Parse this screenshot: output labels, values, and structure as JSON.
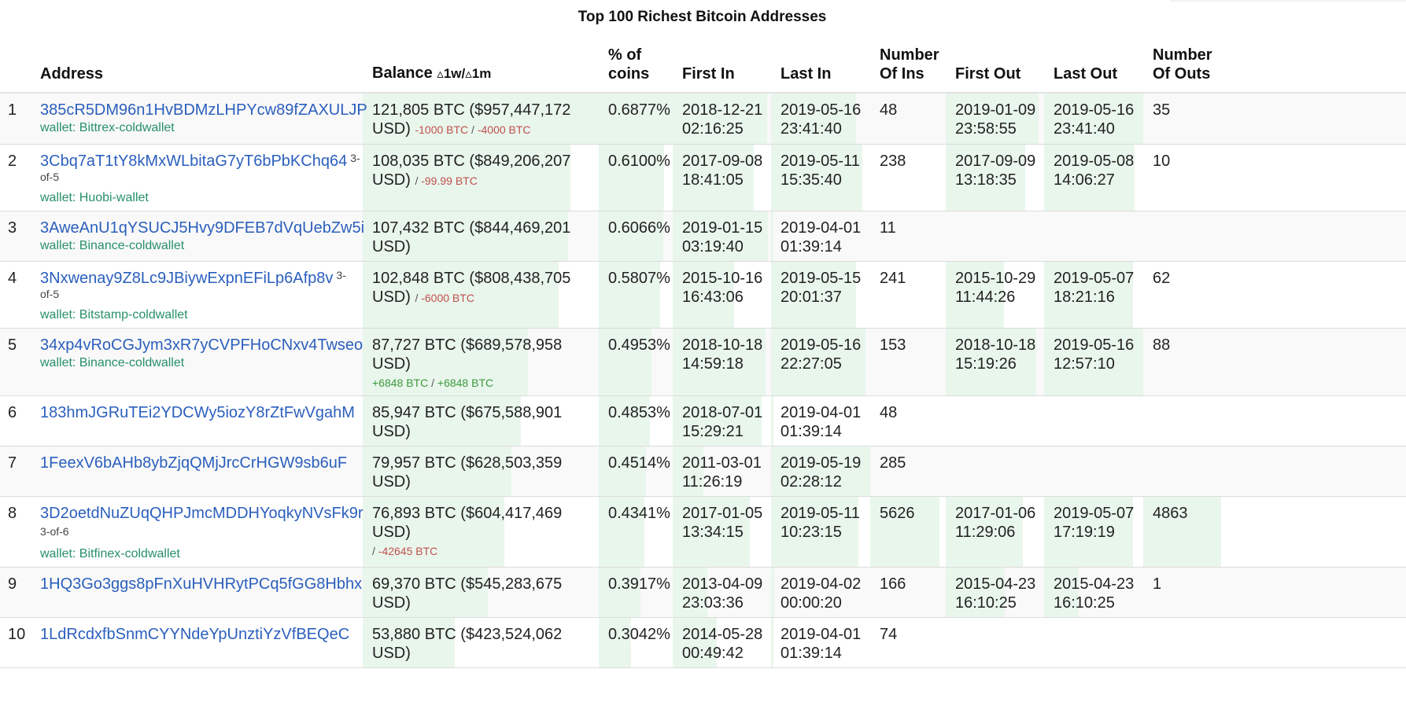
{
  "title": "Top 100 Richest Bitcoin Addresses",
  "columns": {
    "address": "Address",
    "balance": "Balance",
    "balance_suffix": "▵1w/▵1m",
    "pct_line1": "% of",
    "pct_line2": "coins",
    "first_in": "First In",
    "last_in": "Last In",
    "num_ins_line1": "Number",
    "num_ins_line2": "Of Ins",
    "first_out": "First Out",
    "last_out": "Last Out",
    "num_outs_line1": "Number",
    "num_outs_line2": "Of Outs"
  },
  "colors": {
    "link": "#2b5fbd",
    "wallet": "#279068",
    "negative_change": "#c0504d",
    "positive_change": "#3c9a3c",
    "bar_fill": "#e9f6ec",
    "row_stripe": "#f9f9f9"
  },
  "rows": [
    {
      "idx": "1",
      "address": "385cR5DM96n1HvBDMzLHPYcw89fZAXULJP",
      "multisig": "",
      "wallet": "wallet: Bittrex-coldwallet",
      "balance": "121,805 BTC ($957,447,172 USD)",
      "chg_1w": "-1000 BTC",
      "chg_1m": "-4000 BTC",
      "chg_sign": "neg",
      "pct": "0.6877%",
      "first_in_date": "2018-12-21",
      "first_in_time": "02:16:25",
      "last_in_date": "2019-05-16",
      "last_in_time": "23:41:40",
      "num_ins": "48",
      "first_out_date": "2019-01-09",
      "first_out_time": "23:58:55",
      "last_out_date": "2019-05-16",
      "last_out_time": "23:41:40",
      "num_outs": "35",
      "bars": {
        "balance": 1.0,
        "pct": 1.0,
        "first_in": 0.96,
        "last_in": 0.86,
        "num_ins": 0.0,
        "first_out": 0.94,
        "last_out": 1.0,
        "num_outs": 0.0
      }
    },
    {
      "idx": "2",
      "address": "3Cbq7aT1tY8kMxWLbitaG7yT6bPbKChq64",
      "multisig": "3-of-5",
      "wallet": "wallet: Huobi-wallet",
      "balance": "108,035 BTC ($849,206,207 USD)",
      "chg_1w": "",
      "chg_1m": "-99.99 BTC",
      "chg_sign": "neg",
      "pct": "0.6100%",
      "first_in_date": "2017-09-08",
      "first_in_time": "18:41:05",
      "last_in_date": "2019-05-11",
      "last_in_time": "15:35:40",
      "num_ins": "238",
      "first_out_date": "2017-09-09",
      "first_out_time": "13:18:35",
      "last_out_date": "2019-05-08",
      "last_out_time": "14:06:27",
      "num_outs": "10",
      "bars": {
        "balance": 0.88,
        "pct": 0.88,
        "first_in": 0.82,
        "last_in": 0.92,
        "num_ins": 0.0,
        "first_out": 0.81,
        "last_out": 0.91,
        "num_outs": 0.0
      }
    },
    {
      "idx": "3",
      "address": "3AweAnU1qYSUCJ5Hvy9DFEB7dVqUebZw5i",
      "multisig": "",
      "wallet": "wallet: Binance-coldwallet",
      "balance": "107,432 BTC ($844,469,201 USD)",
      "chg_1w": "",
      "chg_1m": "",
      "chg_sign": "",
      "pct": "0.6066%",
      "first_in_date": "2019-01-15",
      "first_in_time": "03:19:40",
      "last_in_date": "2019-04-01",
      "last_in_time": "01:39:14",
      "num_ins": "11",
      "first_out_date": "",
      "first_out_time": "",
      "last_out_date": "",
      "last_out_time": "",
      "num_outs": "",
      "bars": {
        "balance": 0.87,
        "pct": 0.87,
        "first_in": 0.97,
        "last_in": 0.02,
        "num_ins": 0.0,
        "first_out": 0.0,
        "last_out": 0.0,
        "num_outs": 0.0
      }
    },
    {
      "idx": "4",
      "address": "3Nxwenay9Z8Lc9JBiywExpnEFiLp6Afp8v",
      "multisig": "3-of-5",
      "wallet": "wallet: Bitstamp-coldwallet",
      "balance": "102,848 BTC ($808,438,705 USD)",
      "chg_1w": "",
      "chg_1m": "-6000 BTC",
      "chg_sign": "neg",
      "pct": "0.5807%",
      "first_in_date": "2015-10-16",
      "first_in_time": "16:43:06",
      "last_in_date": "2019-05-15",
      "last_in_time": "20:01:37",
      "num_ins": "241",
      "first_out_date": "2015-10-29",
      "first_out_time": "11:44:26",
      "last_out_date": "2019-05-07",
      "last_out_time": "18:21:16",
      "num_outs": "62",
      "bars": {
        "balance": 0.83,
        "pct": 0.83,
        "first_in": 0.62,
        "last_in": 0.86,
        "num_ins": 0.0,
        "first_out": 0.59,
        "last_out": 0.9,
        "num_outs": 0.0
      }
    },
    {
      "idx": "5",
      "address": "34xp4vRoCGJym3xR7yCVPFHoCNxv4Twseo",
      "multisig": "",
      "wallet": "wallet: Binance-coldwallet",
      "balance": "87,727 BTC ($689,578,958 USD)",
      "chg_1w": "+6848 BTC",
      "chg_1m": "+6848 BTC",
      "chg_sign": "pos",
      "pct": "0.4953%",
      "first_in_date": "2018-10-18",
      "first_in_time": "14:59:18",
      "last_in_date": "2019-05-16",
      "last_in_time": "22:27:05",
      "num_ins": "153",
      "first_out_date": "2018-10-18",
      "first_out_time": "15:19:26",
      "last_out_date": "2019-05-16",
      "last_out_time": "12:57:10",
      "num_outs": "88",
      "bars": {
        "balance": 0.7,
        "pct": 0.71,
        "first_in": 0.94,
        "last_in": 0.95,
        "num_ins": 0.0,
        "first_out": 0.92,
        "last_out": 1.0,
        "num_outs": 0.0
      }
    },
    {
      "idx": "6",
      "address": "183hmJGRuTEi2YDCWy5iozY8rZtFwVgahM",
      "multisig": "",
      "wallet": "",
      "balance": "85,947 BTC ($675,588,901 USD)",
      "chg_1w": "",
      "chg_1m": "",
      "chg_sign": "",
      "pct": "0.4853%",
      "first_in_date": "2018-07-01",
      "first_in_time": "15:29:21",
      "last_in_date": "2019-04-01",
      "last_in_time": "01:39:14",
      "num_ins": "48",
      "first_out_date": "",
      "first_out_time": "",
      "last_out_date": "",
      "last_out_time": "",
      "num_outs": "",
      "bars": {
        "balance": 0.67,
        "pct": 0.69,
        "first_in": 0.9,
        "last_in": 0.02,
        "num_ins": 0.0,
        "first_out": 0.0,
        "last_out": 0.0,
        "num_outs": 0.0
      }
    },
    {
      "idx": "7",
      "address": "1FeexV6bAHb8ybZjqQMjJrcCrHGW9sb6uF",
      "multisig": "",
      "wallet": "",
      "balance": "79,957 BTC ($628,503,359 USD)",
      "chg_1w": "",
      "chg_1m": "",
      "chg_sign": "",
      "pct": "0.4514%",
      "first_in_date": "2011-03-01",
      "first_in_time": "11:26:19",
      "last_in_date": "2019-05-19",
      "last_in_time": "02:28:12",
      "num_ins": "285",
      "first_out_date": "",
      "first_out_time": "",
      "last_out_date": "",
      "last_out_time": "",
      "num_outs": "",
      "bars": {
        "balance": 0.63,
        "pct": 0.64,
        "first_in": 0.31,
        "last_in": 1.0,
        "num_ins": 0.0,
        "first_out": 0.0,
        "last_out": 0.0,
        "num_outs": 0.0
      }
    },
    {
      "idx": "8",
      "address": "3D2oetdNuZUqQHPJmcMDDHYoqkyNVsFk9r",
      "multisig": "3-of-6",
      "wallet": "wallet: Bitfinex-coldwallet",
      "balance": "76,893 BTC ($604,417,469 USD)",
      "chg_1w": "",
      "chg_1m": "-42645 BTC",
      "chg_sign": "neg",
      "pct": "0.4341%",
      "first_in_date": "2017-01-05",
      "first_in_time": "13:34:15",
      "last_in_date": "2019-05-11",
      "last_in_time": "10:23:15",
      "num_ins": "5626",
      "first_out_date": "2017-01-06",
      "first_out_time": "11:29:06",
      "last_out_date": "2019-05-07",
      "last_out_time": "17:19:19",
      "num_outs": "4863",
      "bars": {
        "balance": 0.6,
        "pct": 0.62,
        "first_in": 0.78,
        "last_in": 0.88,
        "num_ins": 0.92,
        "first_out": 0.78,
        "last_out": 0.9,
        "num_outs": 0.93
      }
    },
    {
      "idx": "9",
      "address": "1HQ3Go3ggs8pFnXuHVHRytPCq5fGG8Hbhx",
      "multisig": "",
      "wallet": "",
      "balance": "69,370 BTC ($545,283,675 USD)",
      "chg_1w": "",
      "chg_1m": "",
      "chg_sign": "",
      "pct": "0.3917%",
      "first_in_date": "2013-04-09",
      "first_in_time": "23:03:36",
      "last_in_date": "2019-04-02",
      "last_in_time": "00:00:20",
      "num_ins": "166",
      "first_out_date": "2015-04-23",
      "first_out_time": "16:10:25",
      "last_out_date": "2015-04-23",
      "last_out_time": "16:10:25",
      "num_outs": "1",
      "bars": {
        "balance": 0.53,
        "pct": 0.56,
        "first_in": 0.35,
        "last_in": 0.03,
        "num_ins": 0.0,
        "first_out": 0.6,
        "last_out": 0.35,
        "num_outs": 0.0
      }
    },
    {
      "idx": "10",
      "address": "1LdRcdxfbSnmCYYNdeYpUnztiYzVfBEQeC",
      "multisig": "",
      "wallet": "",
      "balance": "53,880 BTC ($423,524,062 USD)",
      "chg_1w": "",
      "chg_1m": "",
      "chg_sign": "",
      "pct": "0.3042%",
      "first_in_date": "2014-05-28",
      "first_in_time": "00:49:42",
      "last_in_date": "2019-04-01",
      "last_in_time": "01:39:14",
      "num_ins": "74",
      "first_out_date": "",
      "first_out_time": "",
      "last_out_date": "",
      "last_out_time": "",
      "num_outs": "",
      "bars": {
        "balance": 0.39,
        "pct": 0.44,
        "first_in": 0.45,
        "last_in": 0.02,
        "num_ins": 0.0,
        "first_out": 0.0,
        "last_out": 0.0,
        "num_outs": 0.0
      }
    }
  ]
}
